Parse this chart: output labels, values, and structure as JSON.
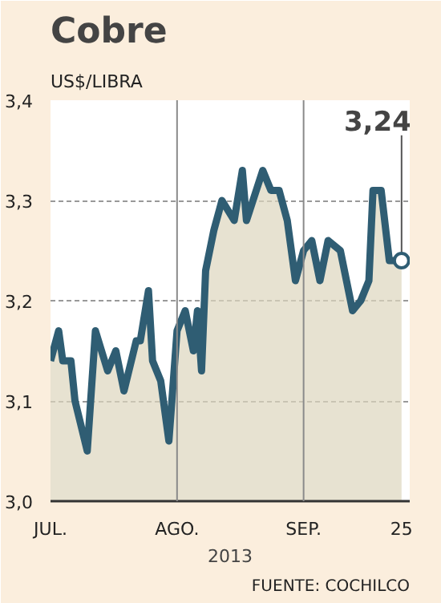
{
  "chart_data": {
    "type": "area",
    "title": "Cobre",
    "subtitle": "US$/LIBRA",
    "xlabel": "2013",
    "annotations": [
      {
        "text": "3,24",
        "x": "2013-09-25",
        "y": 3.24
      },
      "FUENTE: COCHILCO"
    ],
    "x": [
      "2013-07-01",
      "2013-07-03",
      "2013-07-04",
      "2013-07-06",
      "2013-07-07",
      "2013-07-10",
      "2013-07-12",
      "2013-07-15",
      "2013-07-17",
      "2013-07-19",
      "2013-07-22",
      "2013-07-23",
      "2013-07-25",
      "2013-07-26",
      "2013-07-28",
      "2013-07-30",
      "2013-08-01",
      "2013-08-03",
      "2013-08-05",
      "2013-08-06",
      "2013-08-07",
      "2013-08-08",
      "2013-08-10",
      "2013-08-12",
      "2013-08-15",
      "2013-08-17",
      "2013-08-18",
      "2013-08-22",
      "2013-08-24",
      "2013-08-26",
      "2013-08-28",
      "2013-08-30",
      "2013-09-01",
      "2013-09-03",
      "2013-09-05",
      "2013-09-07",
      "2013-09-10",
      "2013-09-13",
      "2013-09-15",
      "2013-09-17",
      "2013-09-18",
      "2013-09-20",
      "2013-09-22",
      "2013-09-25"
    ],
    "series": [
      {
        "color": "#2f5d73",
        "values": [
          3.14,
          3.17,
          3.14,
          3.14,
          3.1,
          3.05,
          3.17,
          3.13,
          3.15,
          3.11,
          3.16,
          3.16,
          3.21,
          3.14,
          3.12,
          3.06,
          3.17,
          3.19,
          3.15,
          3.19,
          3.13,
          3.23,
          3.27,
          3.3,
          3.28,
          3.33,
          3.28,
          3.33,
          3.31,
          3.31,
          3.28,
          3.22,
          3.25,
          3.26,
          3.22,
          3.26,
          3.25,
          3.19,
          3.2,
          3.22,
          3.31,
          3.31,
          3.24,
          3.24
        ]
      }
    ],
    "xlim": [
      "2013-07-01",
      "2013-09-27"
    ],
    "xticks": [
      {
        "value": "2013-07-01",
        "label": "JUL."
      },
      {
        "value": "2013-08-01",
        "label": "AGO."
      },
      {
        "value": "2013-09-01",
        "label": "SEP."
      },
      {
        "value": "2013-09-25",
        "label": "25"
      }
    ],
    "ylim": [
      3.0,
      3.4
    ],
    "yticks": [
      {
        "value": 3.0,
        "label": "3,0"
      },
      {
        "value": 3.1,
        "label": "3,1"
      },
      {
        "value": 3.2,
        "label": "3,2"
      },
      {
        "value": 3.3,
        "label": "3,3"
      },
      {
        "value": 3.4,
        "label": "3,4"
      }
    ],
    "grid": "y",
    "ref_lines": [
      {
        "axis": "x",
        "value": "2013-08-01",
        "label": null,
        "color": "#8a8a8a"
      },
      {
        "axis": "x",
        "value": "2013-09-01",
        "label": null,
        "color": "#8a8a8a"
      }
    ]
  }
}
